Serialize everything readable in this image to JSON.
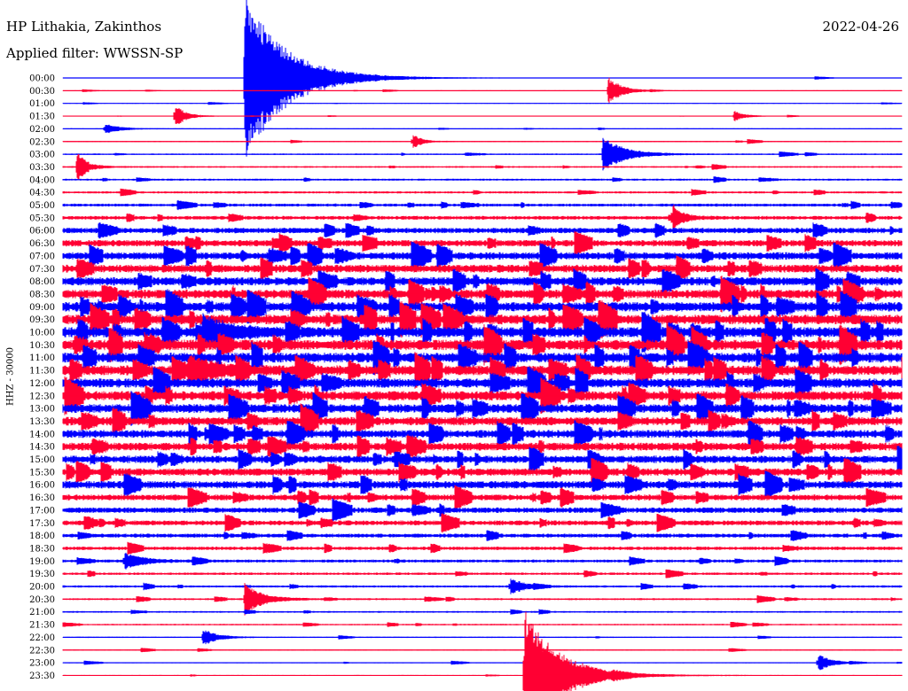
{
  "header": {
    "station": "HP Lithakia, Zakinthos",
    "filter": "Applied filter: WWSSN-SP",
    "date": "2022-04-26"
  },
  "colors": {
    "trace_a": "#0000ff",
    "trace_b": "#ff0033"
  },
  "chart_data": {
    "type": "line",
    "title": "HP Lithakia, Zakinthos",
    "subtitle": "Applied filter: WWSSN-SP",
    "date": "2022-04-26",
    "ylabel": "HHZ - 30000",
    "xlabel": "",
    "grid": false,
    "row_labels": [
      "00:00",
      "00:30",
      "01:00",
      "01:30",
      "02:00",
      "02:30",
      "03:00",
      "03:30",
      "04:00",
      "04:30",
      "05:00",
      "05:30",
      "06:00",
      "06:30",
      "07:00",
      "07:30",
      "08:00",
      "08:30",
      "09:00",
      "09:30",
      "10:00",
      "10:30",
      "11:00",
      "11:30",
      "12:00",
      "12:30",
      "13:00",
      "13:30",
      "14:00",
      "14:30",
      "15:00",
      "15:30",
      "16:00",
      "16:30",
      "17:00",
      "17:30",
      "18:00",
      "18:30",
      "19:00",
      "19:30",
      "20:00",
      "20:30",
      "21:00",
      "21:30",
      "22:00",
      "22:30",
      "23:00",
      "23:30"
    ],
    "row_colors": [
      "#0000ff",
      "#ff0033"
    ],
    "noise_level": [
      0.3,
      0.3,
      0.3,
      0.3,
      0.4,
      0.5,
      0.6,
      0.7,
      0.8,
      0.9,
      1.2,
      1.5,
      2.2,
      2.6,
      3.0,
      3.2,
      3.4,
      3.6,
      3.8,
      4.0,
      4.2,
      4.2,
      4.0,
      4.0,
      3.8,
      3.8,
      3.6,
      3.4,
      3.2,
      3.2,
      3.0,
      3.0,
      3.0,
      2.4,
      2.2,
      2.0,
      1.6,
      1.4,
      1.2,
      1.0,
      0.9,
      0.8,
      0.7,
      0.6,
      0.5,
      0.5,
      0.4,
      0.4
    ],
    "events": [
      {
        "row": 0,
        "minute": 6.5,
        "amplitude": 95,
        "duration": 2.4
      },
      {
        "row": 1,
        "minute": 19.5,
        "amplitude": 16,
        "duration": 0.8
      },
      {
        "row": 3,
        "minute": 4.0,
        "amplitude": 14,
        "duration": 0.6
      },
      {
        "row": 3,
        "minute": 24.0,
        "amplitude": 6,
        "duration": 0.6
      },
      {
        "row": 4,
        "minute": 1.5,
        "amplitude": 6,
        "duration": 0.8
      },
      {
        "row": 5,
        "minute": 12.5,
        "amplitude": 9,
        "duration": 0.5
      },
      {
        "row": 6,
        "minute": 19.3,
        "amplitude": 22,
        "duration": 1.2
      },
      {
        "row": 7,
        "minute": 0.5,
        "amplitude": 14,
        "duration": 0.6
      },
      {
        "row": 11,
        "minute": 21.8,
        "amplitude": 14,
        "duration": 0.6
      },
      {
        "row": 20,
        "minute": 5.0,
        "amplitude": 18,
        "duration": 1.5
      },
      {
        "row": 23,
        "minute": 4.5,
        "amplitude": 16,
        "duration": 1.5
      },
      {
        "row": 38,
        "minute": 2.2,
        "amplitude": 10,
        "duration": 1.0
      },
      {
        "row": 40,
        "minute": 16.0,
        "amplitude": 10,
        "duration": 0.8
      },
      {
        "row": 41,
        "minute": 6.5,
        "amplitude": 18,
        "duration": 1.0
      },
      {
        "row": 44,
        "minute": 5.0,
        "amplitude": 10,
        "duration": 0.8
      },
      {
        "row": 46,
        "minute": 27.0,
        "amplitude": 10,
        "duration": 0.8
      },
      {
        "row": 47,
        "minute": 16.5,
        "amplitude": 75,
        "duration": 2.0
      }
    ]
  }
}
